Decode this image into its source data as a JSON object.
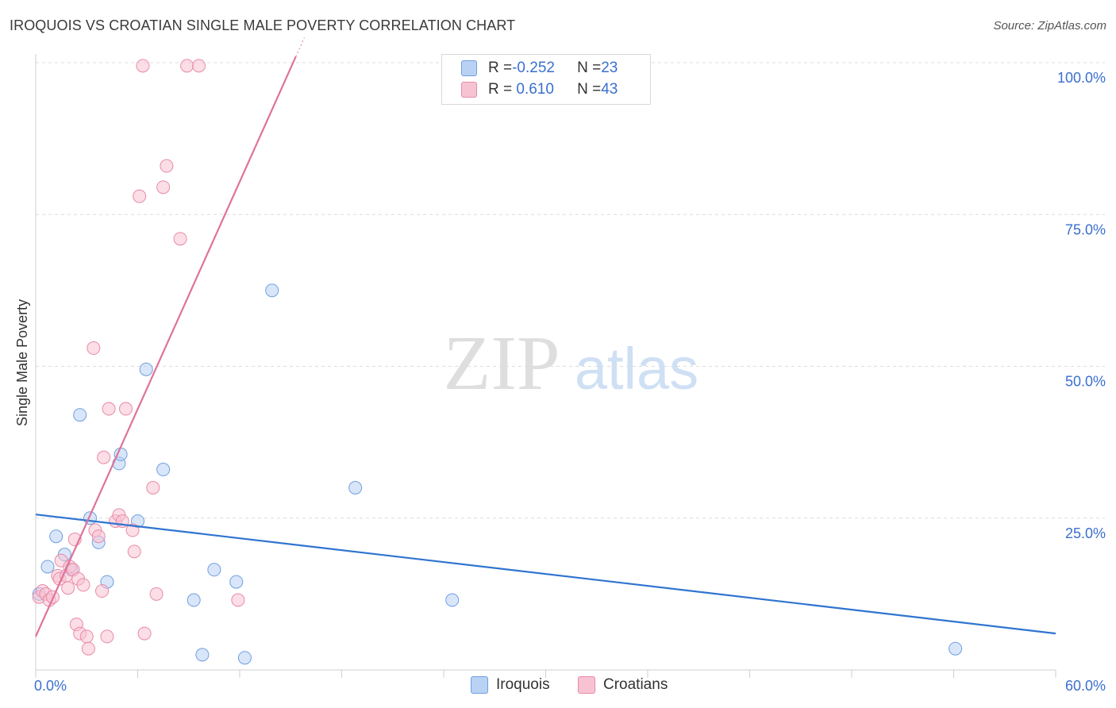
{
  "title": "IROQUOIS VS CROATIAN SINGLE MALE POVERTY CORRELATION CHART",
  "source": "Source: ZipAtlas.com",
  "watermark": {
    "zip": "ZIP",
    "atlas": "atlas"
  },
  "legend": {
    "rows": [
      {
        "r_label": "R = ",
        "r_value": "-0.252",
        "n_label": "N = ",
        "n_value": "23"
      },
      {
        "r_label": "R = ",
        "r_value": " 0.610",
        "n_label": "N = ",
        "n_value": "43"
      }
    ]
  },
  "bottom_legend": {
    "iroquois": "Iroquois",
    "croatians": "Croatians"
  },
  "colors": {
    "iroquois_fill": "#b9d2f4",
    "iroquois_stroke": "#6f9fe0",
    "iroquois_line": "#2f74d0",
    "croatians_fill": "#f7c3d2",
    "croatians_stroke": "#e98aa8",
    "croatians_line": "#e0729a",
    "axis_label": "#3a6fd0",
    "grid": "#dcdcdc"
  },
  "chart_data": {
    "type": "scatter",
    "title": "IROQUOIS VS CROATIAN SINGLE MALE POVERTY CORRELATION CHART",
    "xlabel": "",
    "ylabel": "Single Male Poverty",
    "xlim": [
      0,
      60
    ],
    "ylim": [
      0,
      100
    ],
    "x_tick_labels": [
      "0.0%",
      "60.0%"
    ],
    "y_tick_labels": [
      "100.0%",
      "75.0%",
      "50.0%",
      "25.0%"
    ],
    "y_ticks": [
      100,
      75,
      50,
      25
    ],
    "series": [
      {
        "name": "Iroquois",
        "r": -0.252,
        "n": 23,
        "points": [
          [
            0.2,
            12.5
          ],
          [
            0.7,
            17.0
          ],
          [
            1.2,
            22.0
          ],
          [
            1.7,
            19.0
          ],
          [
            2.1,
            16.5
          ],
          [
            2.6,
            42.0
          ],
          [
            3.2,
            25.0
          ],
          [
            3.7,
            21.0
          ],
          [
            4.2,
            14.5
          ],
          [
            4.9,
            34.0
          ],
          [
            5.0,
            35.5
          ],
          [
            6.0,
            24.5
          ],
          [
            6.5,
            49.5
          ],
          [
            7.5,
            33.0
          ],
          [
            9.3,
            11.5
          ],
          [
            9.8,
            2.5
          ],
          [
            10.5,
            16.5
          ],
          [
            11.8,
            14.5
          ],
          [
            12.3,
            2.0
          ],
          [
            13.9,
            62.5
          ],
          [
            18.8,
            30.0
          ],
          [
            24.5,
            11.5
          ],
          [
            54.1,
            3.5
          ]
        ],
        "trend": {
          "x": [
            0,
            60
          ],
          "y": [
            25.6,
            6.0
          ]
        }
      },
      {
        "name": "Croatians",
        "r": 0.61,
        "n": 43,
        "points": [
          [
            0.2,
            12.0
          ],
          [
            0.4,
            13.0
          ],
          [
            0.6,
            12.5
          ],
          [
            0.8,
            11.5
          ],
          [
            1.0,
            12.0
          ],
          [
            1.3,
            15.5
          ],
          [
            1.4,
            15.0
          ],
          [
            1.5,
            18.0
          ],
          [
            1.8,
            15.5
          ],
          [
            1.9,
            13.5
          ],
          [
            2.0,
            17.0
          ],
          [
            2.2,
            16.5
          ],
          [
            2.3,
            21.5
          ],
          [
            2.4,
            7.5
          ],
          [
            2.5,
            15.0
          ],
          [
            2.6,
            6.0
          ],
          [
            2.8,
            14.0
          ],
          [
            3.0,
            5.5
          ],
          [
            3.1,
            3.5
          ],
          [
            3.4,
            53.0
          ],
          [
            3.5,
            23.0
          ],
          [
            3.7,
            22.0
          ],
          [
            3.9,
            13.0
          ],
          [
            4.0,
            35.0
          ],
          [
            4.2,
            5.5
          ],
          [
            4.3,
            43.0
          ],
          [
            4.7,
            24.5
          ],
          [
            4.9,
            25.5
          ],
          [
            5.1,
            24.5
          ],
          [
            5.3,
            43.0
          ],
          [
            5.7,
            23.0
          ],
          [
            5.8,
            19.5
          ],
          [
            6.1,
            78.0
          ],
          [
            6.3,
            99.5
          ],
          [
            6.4,
            6.0
          ],
          [
            6.9,
            30.0
          ],
          [
            7.1,
            12.5
          ],
          [
            7.5,
            79.5
          ],
          [
            7.7,
            83.0
          ],
          [
            8.5,
            71.0
          ],
          [
            8.9,
            99.5
          ],
          [
            9.6,
            99.5
          ],
          [
            11.9,
            11.5
          ]
        ],
        "trend": {
          "x": [
            0,
            15.3
          ],
          "y": [
            5.5,
            101.0
          ]
        }
      }
    ]
  }
}
